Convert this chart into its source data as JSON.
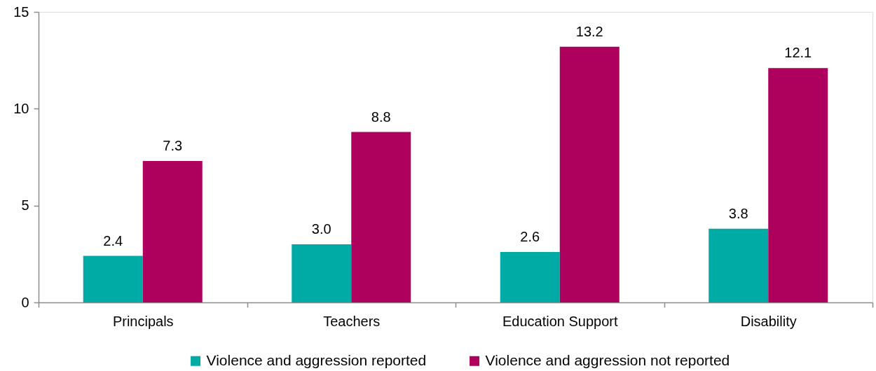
{
  "chart_data": {
    "type": "bar",
    "categories": [
      "Principals",
      "Teachers",
      "Education Support",
      "Disability"
    ],
    "series": [
      {
        "name": "Violence and aggression reported",
        "color": "#00aaa5",
        "values": [
          2.4,
          3.0,
          2.6,
          3.8
        ],
        "value_labels": [
          "2.4",
          "3.0",
          "2.6",
          "3.8"
        ]
      },
      {
        "name": "Violence and aggression not reported",
        "color": "#ae005d",
        "values": [
          7.3,
          8.8,
          13.2,
          12.1
        ],
        "value_labels": [
          "7.3",
          "8.8",
          "13.2",
          "12.1"
        ]
      }
    ],
    "ylim": [
      0,
      15
    ],
    "yticks": [
      0,
      5,
      10,
      15
    ],
    "legend": "bottom"
  }
}
